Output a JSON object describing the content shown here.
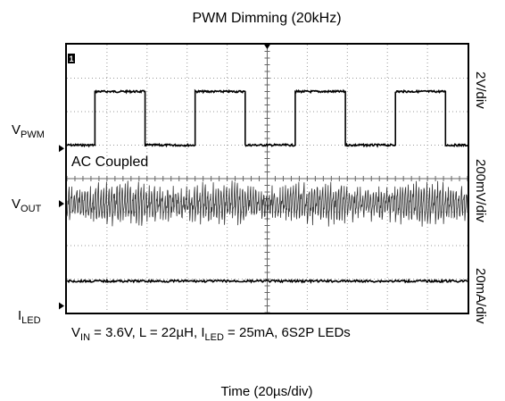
{
  "chart_data": {
    "type": "line",
    "title": "PWM Dimming (20kHz)",
    "xlabel": "Time (20µs/div)",
    "grid": true,
    "x_divisions": 10,
    "y_divisions": 8,
    "x_per_div_us": 20,
    "pwm_frequency_khz": 20,
    "pwm_duty_cycle_percent": 50,
    "channels": [
      {
        "name_main": "V",
        "name_sub": "PWM",
        "scale_text": "2V/div",
        "type": "square",
        "ground_div": 4.9,
        "low_div": 5.0,
        "high_div": 6.6,
        "first_high_us": 14,
        "period_us": 50
      },
      {
        "name_main": "V",
        "name_sub": "OUT",
        "scale_text": "200mV/div",
        "coupling": "AC Coupled",
        "type": "ripple",
        "center_div": 3.25,
        "ripple_pp_div": 0.9
      },
      {
        "name_main": "I",
        "name_sub": "LED",
        "scale_text": "20mA/div",
        "type": "dc",
        "ground_div": 0.2,
        "level_div": 0.94
      }
    ],
    "annotation": {
      "vin_main": "V",
      "vin_sub": "IN",
      "vin_rest": " = 3.6V, L = 22µH, ",
      "iled_main": "I",
      "iled_sub": "LED",
      "iled_rest": " = 25mA, 6S2P LEDs"
    },
    "trigger_marker": "1"
  }
}
